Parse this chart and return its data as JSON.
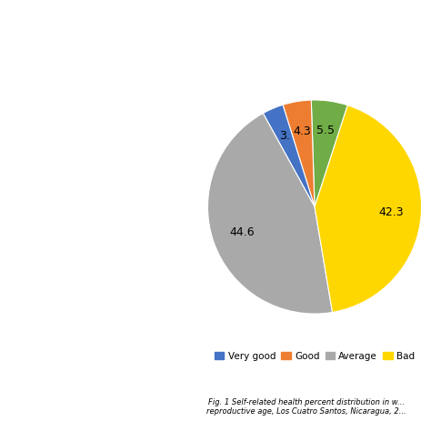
{
  "slices": [
    5.5,
    4.3,
    3.2,
    44.6,
    42.3
  ],
  "colors": [
    "#70AD47",
    "#ED7D31",
    "#4472C4",
    "#A9A9A9",
    "#FFD700"
  ],
  "legend_labels": [
    "Very good",
    "Good",
    "Average",
    "Bad"
  ],
  "legend_colors": [
    "#4472C4",
    "#ED7D31",
    "#A9A9A9",
    "#FFD700"
  ],
  "legend_dot_colors": [
    "#4472C4",
    "#ED7D31",
    "#A9A9A9",
    "#FFD700"
  ],
  "startangle": 72,
  "background_color": "#FFFFFF",
  "pct_labels": [
    "5.5",
    "4.3",
    "3.",
    "44.6",
    "42.3"
  ],
  "pct_distance": 0.72
}
